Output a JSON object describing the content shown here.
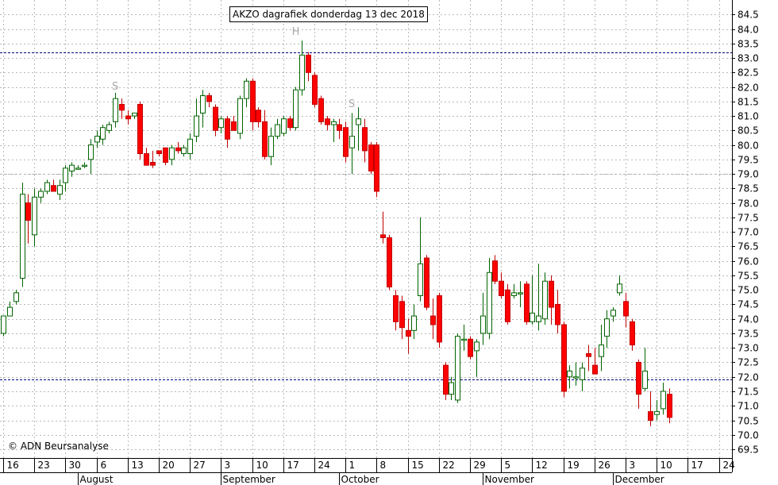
{
  "chart_data": {
    "type": "candlestick",
    "title": "AKZO dagrafiek donderdag 13 dec 2018",
    "copyright": "© ADN Beursanalyse",
    "ylim": [
      69.2,
      85.0
    ],
    "y_ticks": [
      "69.5",
      "70.0",
      "70.5",
      "71.0",
      "71.5",
      "72.0",
      "72.5",
      "73.0",
      "73.5",
      "74.0",
      "74.5",
      "75.0",
      "75.5",
      "76.0",
      "76.5",
      "77.0",
      "77.5",
      "78.0",
      "78.5",
      "79.0",
      "79.5",
      "80.0",
      "80.5",
      "81.0",
      "81.5",
      "82.0",
      "82.5",
      "83.0",
      "83.5",
      "84.0",
      "84.5"
    ],
    "day_labels": [
      {
        "text": "16",
        "x": 0
      },
      {
        "text": "23",
        "x": 5
      },
      {
        "text": "30",
        "x": 10
      },
      {
        "text": "6",
        "x": 15
      },
      {
        "text": "13",
        "x": 20
      },
      {
        "text": "20",
        "x": 25
      },
      {
        "text": "27",
        "x": 30
      },
      {
        "text": "3",
        "x": 35
      },
      {
        "text": "10",
        "x": 40
      },
      {
        "text": "17",
        "x": 45
      },
      {
        "text": "24",
        "x": 50
      },
      {
        "text": "1",
        "x": 55
      },
      {
        "text": "8",
        "x": 60
      },
      {
        "text": "15",
        "x": 65
      },
      {
        "text": "22",
        "x": 70
      },
      {
        "text": "29",
        "x": 75
      },
      {
        "text": "5",
        "x": 80
      },
      {
        "text": "12",
        "x": 85
      },
      {
        "text": "19",
        "x": 90
      },
      {
        "text": "26",
        "x": 95
      },
      {
        "text": "3",
        "x": 100
      },
      {
        "text": "10",
        "x": 105
      },
      {
        "text": "17",
        "x": 110
      },
      {
        "text": "24",
        "x": 115
      }
    ],
    "month_labels": [
      {
        "text": "August",
        "x": 12
      },
      {
        "text": "September",
        "x": 35
      },
      {
        "text": "October",
        "x": 54
      },
      {
        "text": "November",
        "x": 77
      },
      {
        "text": "December",
        "x": 98
      }
    ],
    "hlines": [
      83.2,
      79.0,
      71.9
    ],
    "annotations": [
      {
        "text": "S",
        "x": 18,
        "y": 81.9
      },
      {
        "text": "H",
        "x": 47,
        "y": 83.8
      },
      {
        "text": "S",
        "x": 56,
        "y": 81.3
      }
    ],
    "candles": [
      {
        "x": 0,
        "o": 73.5,
        "h": 74.1,
        "l": 73.4,
        "c": 74.1
      },
      {
        "x": 1,
        "o": 74.1,
        "h": 74.6,
        "l": 74.1,
        "c": 74.4
      },
      {
        "x": 2,
        "o": 74.6,
        "h": 75.0,
        "l": 74.5,
        "c": 74.9
      },
      {
        "x": 3,
        "o": 75.4,
        "h": 78.7,
        "l": 75.1,
        "c": 78.3
      },
      {
        "x": 4,
        "o": 78.0,
        "h": 78.3,
        "l": 76.6,
        "c": 77.4
      },
      {
        "x": 5,
        "o": 76.9,
        "h": 78.5,
        "l": 76.5,
        "c": 78.2
      },
      {
        "x": 6,
        "o": 78.2,
        "h": 78.5,
        "l": 78.0,
        "c": 78.4
      },
      {
        "x": 7,
        "o": 78.4,
        "h": 78.8,
        "l": 78.3,
        "c": 78.7
      },
      {
        "x": 8,
        "o": 78.6,
        "h": 78.8,
        "l": 78.4,
        "c": 78.4
      },
      {
        "x": 9,
        "o": 78.3,
        "h": 78.8,
        "l": 78.1,
        "c": 78.6
      },
      {
        "x": 10,
        "o": 78.7,
        "h": 79.3,
        "l": 78.4,
        "c": 79.2
      },
      {
        "x": 11,
        "o": 79.1,
        "h": 79.4,
        "l": 78.9,
        "c": 79.3
      },
      {
        "x": 12,
        "o": 79.2,
        "h": 79.3,
        "l": 79.2,
        "c": 79.2
      },
      {
        "x": 13,
        "o": 79.3,
        "h": 79.4,
        "l": 79.2,
        "c": 79.3
      },
      {
        "x": 14,
        "o": 79.5,
        "h": 80.2,
        "l": 79.0,
        "c": 80.0
      },
      {
        "x": 15,
        "o": 80.1,
        "h": 80.5,
        "l": 79.9,
        "c": 80.3
      },
      {
        "x": 16,
        "o": 80.2,
        "h": 80.7,
        "l": 80.0,
        "c": 80.6
      },
      {
        "x": 17,
        "o": 80.5,
        "h": 80.8,
        "l": 80.4,
        "c": 80.7
      },
      {
        "x": 18,
        "o": 80.8,
        "h": 81.8,
        "l": 80.6,
        "c": 81.6
      },
      {
        "x": 19,
        "o": 81.4,
        "h": 81.6,
        "l": 80.9,
        "c": 81.2
      },
      {
        "x": 20,
        "o": 81.0,
        "h": 81.2,
        "l": 80.7,
        "c": 80.9
      },
      {
        "x": 21,
        "o": 81.0,
        "h": 81.1,
        "l": 80.9,
        "c": 81.1
      },
      {
        "x": 22,
        "o": 81.4,
        "h": 81.5,
        "l": 79.5,
        "c": 79.7
      },
      {
        "x": 23,
        "o": 79.7,
        "h": 79.9,
        "l": 79.3,
        "c": 79.3
      },
      {
        "x": 24,
        "o": 79.4,
        "h": 79.8,
        "l": 79.2,
        "c": 79.3
      },
      {
        "x": 25,
        "o": 79.8,
        "h": 79.8,
        "l": 79.6,
        "c": 79.7
      },
      {
        "x": 26,
        "o": 79.9,
        "h": 79.9,
        "l": 79.3,
        "c": 79.4
      },
      {
        "x": 27,
        "o": 79.5,
        "h": 80.0,
        "l": 79.3,
        "c": 79.9
      },
      {
        "x": 28,
        "o": 79.9,
        "h": 80.1,
        "l": 79.7,
        "c": 79.8
      },
      {
        "x": 29,
        "o": 79.7,
        "h": 80.0,
        "l": 79.6,
        "c": 79.9
      },
      {
        "x": 30,
        "o": 79.7,
        "h": 80.4,
        "l": 79.5,
        "c": 80.2
      },
      {
        "x": 31,
        "o": 80.3,
        "h": 81.6,
        "l": 80.1,
        "c": 81.0
      },
      {
        "x": 32,
        "o": 81.1,
        "h": 81.9,
        "l": 80.6,
        "c": 81.7
      },
      {
        "x": 33,
        "o": 81.7,
        "h": 81.8,
        "l": 81.3,
        "c": 81.5
      },
      {
        "x": 34,
        "o": 81.3,
        "h": 81.4,
        "l": 80.3,
        "c": 80.5
      },
      {
        "x": 35,
        "o": 80.6,
        "h": 81.0,
        "l": 80.4,
        "c": 80.9
      },
      {
        "x": 36,
        "o": 80.9,
        "h": 81.0,
        "l": 79.9,
        "c": 80.2
      },
      {
        "x": 37,
        "o": 80.8,
        "h": 81.0,
        "l": 80.5,
        "c": 80.5
      },
      {
        "x": 38,
        "o": 80.4,
        "h": 81.7,
        "l": 80.2,
        "c": 81.6
      },
      {
        "x": 39,
        "o": 81.6,
        "h": 82.3,
        "l": 81.3,
        "c": 82.2
      },
      {
        "x": 40,
        "o": 82.2,
        "h": 82.3,
        "l": 80.5,
        "c": 80.8
      },
      {
        "x": 41,
        "o": 81.2,
        "h": 81.3,
        "l": 80.6,
        "c": 80.8
      },
      {
        "x": 42,
        "o": 80.8,
        "h": 81.2,
        "l": 79.5,
        "c": 79.6
      },
      {
        "x": 43,
        "o": 79.6,
        "h": 80.6,
        "l": 79.3,
        "c": 80.3
      },
      {
        "x": 44,
        "o": 80.3,
        "h": 80.9,
        "l": 80.2,
        "c": 80.7
      },
      {
        "x": 45,
        "o": 80.4,
        "h": 81.0,
        "l": 80.3,
        "c": 80.9
      },
      {
        "x": 46,
        "o": 80.9,
        "h": 81.0,
        "l": 80.5,
        "c": 80.6
      },
      {
        "x": 47,
        "o": 80.6,
        "h": 82.0,
        "l": 80.5,
        "c": 81.9
      },
      {
        "x": 48,
        "o": 81.9,
        "h": 83.6,
        "l": 81.7,
        "c": 83.1
      },
      {
        "x": 49,
        "o": 83.1,
        "h": 83.2,
        "l": 82.2,
        "c": 82.5
      },
      {
        "x": 50,
        "o": 82.4,
        "h": 82.5,
        "l": 81.3,
        "c": 81.4
      },
      {
        "x": 51,
        "o": 81.6,
        "h": 81.7,
        "l": 80.7,
        "c": 80.8
      },
      {
        "x": 52,
        "o": 80.9,
        "h": 81.0,
        "l": 80.5,
        "c": 80.7
      },
      {
        "x": 53,
        "o": 80.7,
        "h": 80.9,
        "l": 80.1,
        "c": 80.8
      },
      {
        "x": 54,
        "o": 80.7,
        "h": 80.9,
        "l": 80.2,
        "c": 80.5
      },
      {
        "x": 55,
        "o": 80.6,
        "h": 80.8,
        "l": 79.4,
        "c": 79.6
      },
      {
        "x": 56,
        "o": 79.9,
        "h": 81.1,
        "l": 79.0,
        "c": 80.3
      },
      {
        "x": 57,
        "o": 80.7,
        "h": 81.3,
        "l": 79.8,
        "c": 80.9
      },
      {
        "x": 58,
        "o": 80.6,
        "h": 80.9,
        "l": 79.4,
        "c": 79.8
      },
      {
        "x": 59,
        "o": 80.0,
        "h": 80.1,
        "l": 79.0,
        "c": 79.1
      },
      {
        "x": 60,
        "o": 80.0,
        "h": 80.1,
        "l": 78.2,
        "c": 78.4
      },
      {
        "x": 61,
        "o": 76.9,
        "h": 77.7,
        "l": 76.6,
        "c": 76.8
      },
      {
        "x": 62,
        "o": 76.8,
        "h": 76.9,
        "l": 75.0,
        "c": 75.1
      },
      {
        "x": 63,
        "o": 74.8,
        "h": 75.0,
        "l": 73.6,
        "c": 73.9
      },
      {
        "x": 64,
        "o": 74.6,
        "h": 74.8,
        "l": 73.3,
        "c": 73.7
      },
      {
        "x": 65,
        "o": 73.6,
        "h": 74.0,
        "l": 72.8,
        "c": 73.4
      },
      {
        "x": 66,
        "o": 73.6,
        "h": 74.5,
        "l": 73.3,
        "c": 74.1
      },
      {
        "x": 67,
        "o": 74.8,
        "h": 77.5,
        "l": 74.6,
        "c": 75.9
      },
      {
        "x": 68,
        "o": 76.1,
        "h": 76.2,
        "l": 74.3,
        "c": 74.4
      },
      {
        "x": 69,
        "o": 74.1,
        "h": 74.7,
        "l": 73.3,
        "c": 73.8
      },
      {
        "x": 70,
        "o": 74.8,
        "h": 74.9,
        "l": 73.0,
        "c": 73.2
      },
      {
        "x": 71,
        "o": 72.4,
        "h": 72.5,
        "l": 71.2,
        "c": 71.4
      },
      {
        "x": 72,
        "o": 71.4,
        "h": 72.0,
        "l": 71.2,
        "c": 71.8
      },
      {
        "x": 73,
        "o": 71.2,
        "h": 73.5,
        "l": 71.1,
        "c": 73.4
      },
      {
        "x": 74,
        "o": 73.3,
        "h": 73.8,
        "l": 72.9,
        "c": 73.3
      },
      {
        "x": 75,
        "o": 73.3,
        "h": 73.4,
        "l": 72.6,
        "c": 72.7
      },
      {
        "x": 76,
        "o": 72.9,
        "h": 73.3,
        "l": 72.0,
        "c": 73.2
      },
      {
        "x": 77,
        "o": 73.5,
        "h": 74.9,
        "l": 73.1,
        "c": 74.1
      },
      {
        "x": 78,
        "o": 73.5,
        "h": 76.1,
        "l": 73.3,
        "c": 75.6
      },
      {
        "x": 79,
        "o": 76.0,
        "h": 76.2,
        "l": 75.2,
        "c": 75.3
      },
      {
        "x": 80,
        "o": 75.3,
        "h": 75.6,
        "l": 74.7,
        "c": 74.8
      },
      {
        "x": 81,
        "o": 75.0,
        "h": 75.2,
        "l": 73.8,
        "c": 73.9
      },
      {
        "x": 82,
        "o": 74.8,
        "h": 75.2,
        "l": 74.7,
        "c": 74.9
      },
      {
        "x": 83,
        "o": 74.9,
        "h": 75.3,
        "l": 74.4,
        "c": 74.9
      },
      {
        "x": 84,
        "o": 75.2,
        "h": 75.3,
        "l": 73.8,
        "c": 73.9
      },
      {
        "x": 85,
        "o": 73.9,
        "h": 75.5,
        "l": 73.8,
        "c": 74.2
      },
      {
        "x": 86,
        "o": 73.9,
        "h": 75.9,
        "l": 73.6,
        "c": 74.1
      },
      {
        "x": 87,
        "o": 74.0,
        "h": 75.6,
        "l": 73.8,
        "c": 75.3
      },
      {
        "x": 88,
        "o": 75.3,
        "h": 75.5,
        "l": 73.8,
        "c": 74.4
      },
      {
        "x": 89,
        "o": 74.5,
        "h": 75.0,
        "l": 73.5,
        "c": 73.8
      },
      {
        "x": 90,
        "o": 73.8,
        "h": 73.9,
        "l": 71.3,
        "c": 71.5
      },
      {
        "x": 91,
        "o": 72.0,
        "h": 72.4,
        "l": 71.6,
        "c": 72.2
      },
      {
        "x": 92,
        "o": 72.0,
        "h": 72.5,
        "l": 71.7,
        "c": 72.0
      },
      {
        "x": 93,
        "o": 71.9,
        "h": 72.5,
        "l": 71.5,
        "c": 72.3
      },
      {
        "x": 94,
        "o": 72.8,
        "h": 73.1,
        "l": 72.2,
        "c": 72.7
      },
      {
        "x": 95,
        "o": 72.4,
        "h": 73.0,
        "l": 72.1,
        "c": 72.1
      },
      {
        "x": 96,
        "o": 72.7,
        "h": 73.8,
        "l": 72.2,
        "c": 73.1
      },
      {
        "x": 97,
        "o": 73.4,
        "h": 74.3,
        "l": 73.0,
        "c": 74.0
      },
      {
        "x": 98,
        "o": 74.1,
        "h": 74.4,
        "l": 73.9,
        "c": 74.3
      },
      {
        "x": 99,
        "o": 74.9,
        "h": 75.5,
        "l": 74.8,
        "c": 75.2
      },
      {
        "x": 100,
        "o": 74.6,
        "h": 74.9,
        "l": 73.7,
        "c": 74.1
      },
      {
        "x": 101,
        "o": 73.9,
        "h": 74.0,
        "l": 72.9,
        "c": 73.1
      },
      {
        "x": 102,
        "o": 72.5,
        "h": 72.6,
        "l": 70.9,
        "c": 71.4
      },
      {
        "x": 103,
        "o": 71.6,
        "h": 73.0,
        "l": 71.5,
        "c": 72.2
      },
      {
        "x": 104,
        "o": 70.8,
        "h": 71.5,
        "l": 70.3,
        "c": 70.5
      },
      {
        "x": 105,
        "o": 70.7,
        "h": 71.2,
        "l": 70.5,
        "c": 70.8
      },
      {
        "x": 106,
        "o": 70.9,
        "h": 71.8,
        "l": 70.7,
        "c": 71.5
      },
      {
        "x": 107,
        "o": 71.4,
        "h": 71.6,
        "l": 70.4,
        "c": 70.6
      }
    ],
    "colors": {
      "up_fill": "#ffffff",
      "up_stroke": "#006400",
      "down": "#ff0000",
      "down_stroke": "#c00000",
      "hline": "#000080",
      "hline_grey": "#b0b0b0",
      "grid": "#b8b8b8",
      "annotation": "#aaaaaa"
    }
  }
}
